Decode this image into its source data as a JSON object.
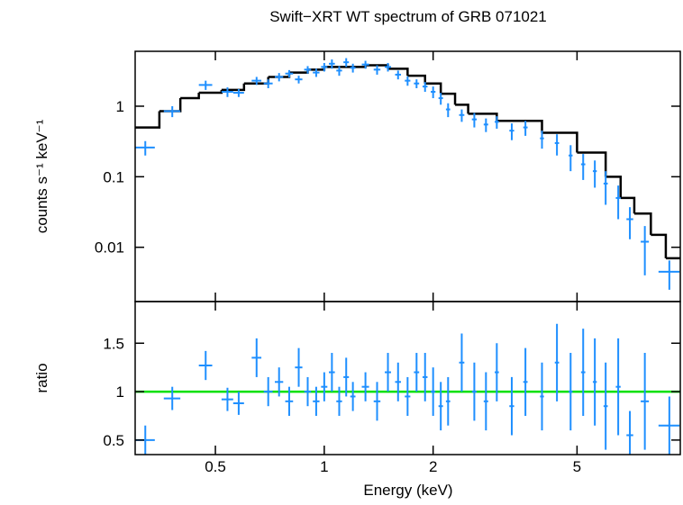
{
  "chart_data": [
    {
      "type": "errorbar",
      "title": "Swift−XRT WT spectrum of GRB 071021",
      "ylabel": "counts s⁻¹ keV⁻¹",
      "xlog": true,
      "ylog": true,
      "xlim": [
        0.3,
        9.65
      ],
      "ylim": [
        0.0017,
        6
      ],
      "yticks": [
        0.01,
        0.1,
        1
      ],
      "points": {
        "color": "#1e8fff",
        "x": [
          0.32,
          0.38,
          0.47,
          0.54,
          0.58,
          0.65,
          0.7,
          0.75,
          0.8,
          0.85,
          0.9,
          0.95,
          1.0,
          1.05,
          1.1,
          1.15,
          1.2,
          1.3,
          1.4,
          1.5,
          1.6,
          1.7,
          1.8,
          1.9,
          2.0,
          2.1,
          2.2,
          2.4,
          2.6,
          2.8,
          3.0,
          3.3,
          3.6,
          4.0,
          4.4,
          4.8,
          5.2,
          5.6,
          6.0,
          6.5,
          7.0,
          7.7,
          9.0
        ],
        "xerr": [
          0.02,
          0.02,
          0.02,
          0.02,
          0.02,
          0.02,
          0.02,
          0.02,
          0.02,
          0.02,
          0.02,
          0.02,
          0.02,
          0.02,
          0.02,
          0.02,
          0.02,
          0.03,
          0.03,
          0.03,
          0.03,
          0.03,
          0.03,
          0.03,
          0.03,
          0.03,
          0.03,
          0.04,
          0.04,
          0.04,
          0.04,
          0.05,
          0.05,
          0.05,
          0.06,
          0.06,
          0.07,
          0.07,
          0.08,
          0.1,
          0.15,
          0.2,
          0.6
        ],
        "values": [
          0.26,
          0.85,
          2.0,
          1.6,
          1.55,
          2.3,
          2.1,
          2.6,
          2.9,
          2.4,
          3.3,
          3.0,
          3.6,
          4.0,
          3.2,
          4.2,
          3.5,
          3.9,
          3.3,
          3.6,
          2.8,
          2.3,
          2.1,
          1.9,
          1.6,
          1.3,
          0.9,
          0.75,
          0.65,
          0.55,
          0.6,
          0.45,
          0.5,
          0.35,
          0.3,
          0.2,
          0.15,
          0.12,
          0.08,
          0.05,
          0.025,
          0.012,
          0.0045
        ],
        "errors": [
          0.06,
          0.15,
          0.3,
          0.25,
          0.2,
          0.3,
          0.3,
          0.35,
          0.35,
          0.3,
          0.4,
          0.4,
          0.5,
          0.6,
          0.5,
          0.6,
          0.5,
          0.5,
          0.5,
          0.5,
          0.4,
          0.35,
          0.3,
          0.3,
          0.3,
          0.25,
          0.2,
          0.15,
          0.15,
          0.12,
          0.12,
          0.12,
          0.12,
          0.1,
          0.1,
          0.08,
          0.06,
          0.05,
          0.04,
          0.025,
          0.012,
          0.008,
          0.002
        ]
      },
      "model": {
        "color": "#000000",
        "x": [
          0.3,
          0.35,
          0.4,
          0.45,
          0.52,
          0.6,
          0.7,
          0.8,
          0.9,
          1.0,
          1.3,
          1.5,
          1.7,
          1.9,
          2.1,
          2.3,
          2.5,
          3.0,
          4.0,
          5.0,
          6.0,
          6.6,
          7.2,
          8.0,
          8.8
        ],
        "values": [
          0.5,
          0.85,
          1.3,
          1.55,
          1.7,
          2.1,
          2.6,
          3.0,
          3.3,
          3.6,
          3.8,
          3.4,
          2.7,
          2.1,
          1.5,
          1.05,
          0.78,
          0.62,
          0.42,
          0.22,
          0.1,
          0.05,
          0.03,
          0.015,
          0.007
        ]
      }
    },
    {
      "type": "errorbar",
      "ylabel": "ratio",
      "xlabel": "Energy (keV)",
      "xlog": true,
      "xlim": [
        0.3,
        9.65
      ],
      "ylim": [
        0.35,
        1.93
      ],
      "xticks": [
        0.5,
        1,
        2,
        5
      ],
      "yticks": [
        0.5,
        1,
        1.5
      ],
      "reference_line": {
        "value": 1,
        "color": "#00e000"
      },
      "points": {
        "color": "#1e8fff",
        "x": [
          0.32,
          0.38,
          0.47,
          0.54,
          0.58,
          0.65,
          0.7,
          0.75,
          0.8,
          0.85,
          0.9,
          0.95,
          1.0,
          1.05,
          1.1,
          1.15,
          1.2,
          1.3,
          1.4,
          1.5,
          1.6,
          1.7,
          1.8,
          1.9,
          2.0,
          2.1,
          2.2,
          2.4,
          2.6,
          2.8,
          3.0,
          3.3,
          3.6,
          4.0,
          4.4,
          4.8,
          5.2,
          5.6,
          6.0,
          6.5,
          7.0,
          7.7,
          9.0
        ],
        "xerr": [
          0.02,
          0.02,
          0.02,
          0.02,
          0.02,
          0.02,
          0.02,
          0.02,
          0.02,
          0.02,
          0.02,
          0.02,
          0.02,
          0.02,
          0.02,
          0.02,
          0.02,
          0.03,
          0.03,
          0.03,
          0.03,
          0.03,
          0.03,
          0.03,
          0.03,
          0.03,
          0.03,
          0.04,
          0.04,
          0.04,
          0.04,
          0.05,
          0.05,
          0.05,
          0.06,
          0.06,
          0.07,
          0.07,
          0.08,
          0.1,
          0.15,
          0.2,
          0.6
        ],
        "values": [
          0.5,
          0.93,
          1.27,
          0.92,
          0.88,
          1.35,
          1.0,
          1.1,
          0.9,
          1.25,
          1.0,
          0.9,
          1.05,
          1.2,
          0.9,
          1.15,
          0.95,
          1.05,
          0.9,
          1.2,
          1.1,
          0.95,
          1.2,
          1.15,
          1.0,
          0.85,
          0.9,
          1.3,
          1.0,
          0.9,
          1.2,
          0.85,
          1.1,
          0.95,
          1.3,
          1.0,
          1.2,
          1.1,
          0.85,
          1.05,
          0.55,
          0.9,
          0.65
        ],
        "errors": [
          0.15,
          0.12,
          0.15,
          0.12,
          0.12,
          0.2,
          0.15,
          0.15,
          0.15,
          0.2,
          0.15,
          0.15,
          0.15,
          0.2,
          0.15,
          0.2,
          0.15,
          0.15,
          0.2,
          0.2,
          0.2,
          0.2,
          0.2,
          0.25,
          0.25,
          0.25,
          0.25,
          0.3,
          0.3,
          0.3,
          0.3,
          0.3,
          0.35,
          0.35,
          0.4,
          0.4,
          0.45,
          0.45,
          0.45,
          0.5,
          0.25,
          0.5,
          0.3
        ]
      }
    }
  ]
}
